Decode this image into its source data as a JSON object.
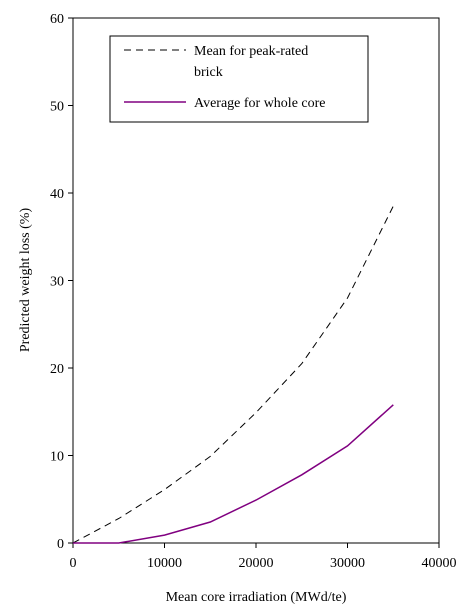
{
  "chart_data": {
    "type": "line",
    "title": "",
    "xlabel": "Mean core irradiation (MWd/te)",
    "ylabel": "Predicted weight loss (%)",
    "xlim": [
      0,
      40000
    ],
    "ylim": [
      0,
      60
    ],
    "xticks": [
      0,
      10000,
      20000,
      30000,
      40000
    ],
    "yticks": [
      0,
      10,
      20,
      30,
      40,
      50,
      60
    ],
    "xtick_labels": [
      "0",
      "10000",
      "20000",
      "30000",
      "40000"
    ],
    "ytick_labels": [
      "0",
      "10",
      "20",
      "30",
      "40",
      "50",
      "60"
    ],
    "grid": false,
    "legend": {
      "position": "top-right"
    },
    "series": [
      {
        "name": "Mean for peak-rated brick",
        "legend_lines": [
          "Mean for peak-rated",
          "brick"
        ],
        "style": "dashed",
        "color": "#000000",
        "x": [
          0,
          5000,
          10000,
          15000,
          20000,
          25000,
          30000,
          35000
        ],
        "y": [
          0,
          2.8,
          6.1,
          9.9,
          14.9,
          20.5,
          28.0,
          38.5
        ]
      },
      {
        "name": "Average for whole core",
        "legend_lines": [
          "Average for whole core"
        ],
        "style": "solid",
        "color": "#800080",
        "x": [
          0,
          5000,
          10000,
          15000,
          20000,
          25000,
          30000,
          35000
        ],
        "y": [
          0,
          0,
          0.9,
          2.4,
          4.9,
          7.8,
          11.1,
          15.8
        ]
      }
    ]
  }
}
